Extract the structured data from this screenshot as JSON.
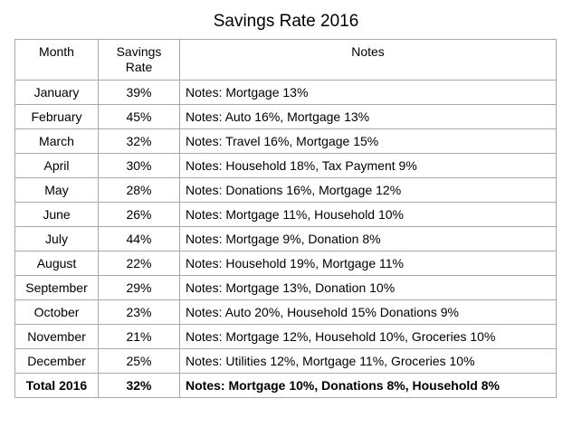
{
  "title": "Savings Rate 2016",
  "headers": {
    "month": "Month",
    "rate_line1": "Savings",
    "rate_line2": "Rate",
    "notes": "Notes"
  },
  "rows": [
    {
      "month": "January",
      "rate": "39%",
      "notes": "Notes: Mortgage 13%"
    },
    {
      "month": "February",
      "rate": "45%",
      "notes": "Notes: Auto 16%, Mortgage 13%"
    },
    {
      "month": "March",
      "rate": "32%",
      "notes": "Notes: Travel 16%, Mortgage 15%"
    },
    {
      "month": "April",
      "rate": "30%",
      "notes": "Notes: Household 18%, Tax Payment 9%"
    },
    {
      "month": "May",
      "rate": "28%",
      "notes": "Notes: Donations 16%, Mortgage 12%"
    },
    {
      "month": "June",
      "rate": "26%",
      "notes": "Notes: Mortgage 11%, Household 10%"
    },
    {
      "month": "July",
      "rate": "44%",
      "notes": "Notes: Mortgage 9%, Donation 8%"
    },
    {
      "month": "August",
      "rate": "22%",
      "notes": "Notes: Household 19%, Mortgage 11%"
    },
    {
      "month": "September",
      "rate": "29%",
      "notes": "Notes: Mortgage 13%, Donation 10%"
    },
    {
      "month": "October",
      "rate": "23%",
      "notes": "Notes: Auto 20%, Household 15% Donations 9%"
    },
    {
      "month": "November",
      "rate": "21%",
      "notes": "Notes: Mortgage 12%, Household 10%, Groceries 10%"
    },
    {
      "month": "December",
      "rate": "25%",
      "notes": "Notes: Utilities 12%, Mortgage 11%, Groceries 10%"
    }
  ],
  "total": {
    "month": "Total 2016",
    "rate": "32%",
    "notes": "Notes: Mortgage 10%, Donations 8%, Household 8%"
  }
}
